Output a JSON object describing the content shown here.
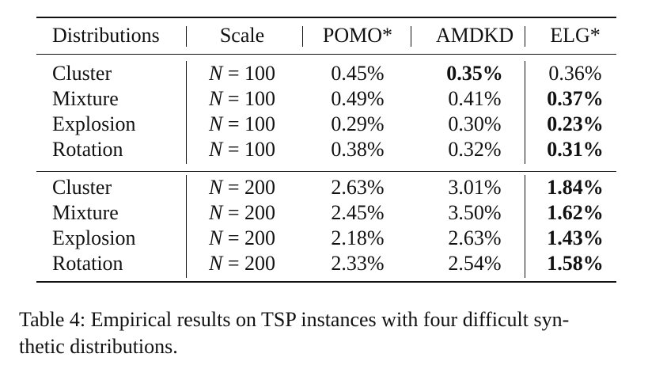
{
  "table": {
    "headers": [
      "Distributions",
      "Scale",
      "POMO*",
      "AMDKD",
      "ELG*"
    ],
    "groups": [
      {
        "rows": [
          {
            "distribution": "Cluster",
            "scale_var": "N",
            "scale_eq": " = 100",
            "pomo": "0.45%",
            "amdkd": "0.35%",
            "elg": "0.36%",
            "bold": "amdkd"
          },
          {
            "distribution": "Mixture",
            "scale_var": "N",
            "scale_eq": " = 100",
            "pomo": "0.49%",
            "amdkd": "0.41%",
            "elg": "0.37%",
            "bold": "elg"
          },
          {
            "distribution": "Explosion",
            "scale_var": "N",
            "scale_eq": " = 100",
            "pomo": "0.29%",
            "amdkd": "0.30%",
            "elg": "0.23%",
            "bold": "elg"
          },
          {
            "distribution": "Rotation",
            "scale_var": "N",
            "scale_eq": " = 100",
            "pomo": "0.38%",
            "amdkd": "0.32%",
            "elg": "0.31%",
            "bold": "elg"
          }
        ]
      },
      {
        "rows": [
          {
            "distribution": "Cluster",
            "scale_var": "N",
            "scale_eq": " = 200",
            "pomo": "2.63%",
            "amdkd": "3.01%",
            "elg": "1.84%",
            "bold": "elg"
          },
          {
            "distribution": "Mixture",
            "scale_var": "N",
            "scale_eq": " = 200",
            "pomo": "2.45%",
            "amdkd": "3.50%",
            "elg": "1.62%",
            "bold": "elg"
          },
          {
            "distribution": "Explosion",
            "scale_var": "N",
            "scale_eq": " = 200",
            "pomo": "2.18%",
            "amdkd": "2.63%",
            "elg": "1.43%",
            "bold": "elg"
          },
          {
            "distribution": "Rotation",
            "scale_var": "N",
            "scale_eq": " = 200",
            "pomo": "2.33%",
            "amdkd": "2.54%",
            "elg": "1.58%",
            "bold": "elg"
          }
        ]
      }
    ]
  },
  "caption": "Table 4: Empirical results on TSP instances with four difficult syn-\nthetic distributions."
}
